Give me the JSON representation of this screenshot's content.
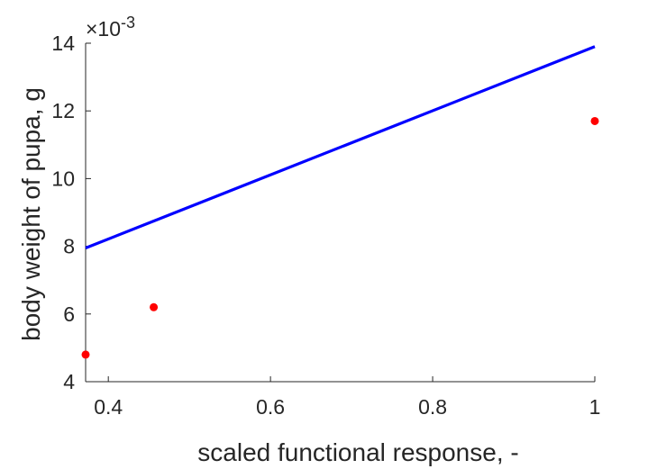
{
  "chart_data": {
    "type": "line",
    "title": "",
    "xlabel": "scaled functional response, -",
    "ylabel": "body weight of pupa, g",
    "xlim": [
      0.372,
      1.0
    ],
    "ylim": [
      0.004,
      0.014
    ],
    "x_ticks": [
      0.4,
      0.6,
      0.8,
      1.0
    ],
    "x_tick_labels": [
      "0.4",
      "0.6",
      "0.8",
      "1"
    ],
    "y_ticks": [
      0.004,
      0.006,
      0.008,
      0.01,
      0.012,
      0.014
    ],
    "y_tick_labels": [
      "4",
      "6",
      "8",
      "10",
      "12",
      "14"
    ],
    "y_exponent": {
      "multiplier": "×10",
      "power": "-3"
    },
    "grid": false,
    "box": false,
    "series": [
      {
        "kind": "line",
        "color": "#0000ff",
        "x": [
          0.372,
          1.0
        ],
        "y": [
          0.00795,
          0.0139
        ]
      },
      {
        "kind": "scatter",
        "color": "#ff0000",
        "x": [
          0.372,
          0.456,
          1.0
        ],
        "y": [
          0.0048,
          0.0062,
          0.0117
        ]
      }
    ]
  }
}
